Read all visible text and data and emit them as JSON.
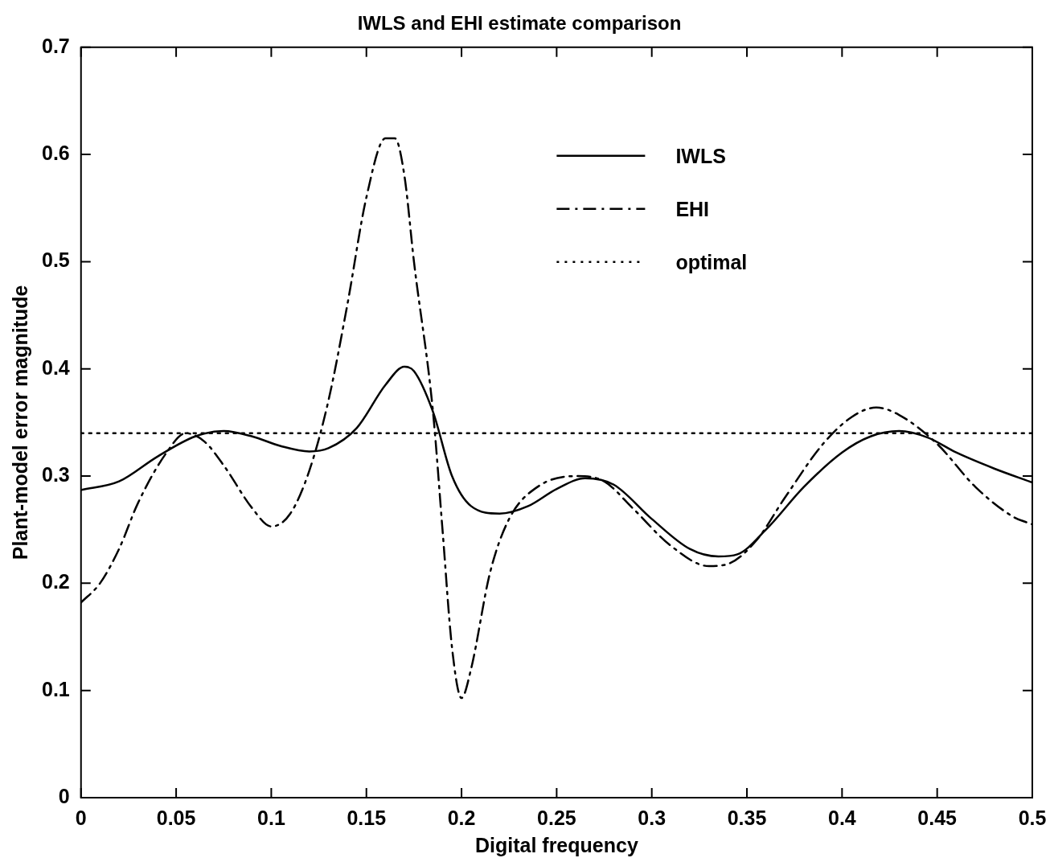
{
  "chart_data": {
    "type": "line",
    "title": "IWLS and EHI estimate comparison",
    "xlabel": "Digital frequency",
    "ylabel": "Plant-model error magnitude",
    "xlim": [
      0,
      0.5
    ],
    "xticks": [
      0,
      0.05,
      0.1,
      0.15,
      0.2,
      0.25,
      0.3,
      0.35,
      0.4,
      0.45,
      0.5
    ],
    "ylim": [
      0,
      0.7
    ],
    "yticks": [
      0,
      0.1,
      0.2,
      0.3,
      0.4,
      0.5,
      0.6,
      0.7
    ],
    "grid": false,
    "legend": "top right",
    "marker": "none",
    "series": [
      {
        "name": "IWLS",
        "color": "#000000",
        "line_style": "solid",
        "x": [
          0,
          0.02,
          0.04,
          0.06,
          0.075,
          0.09,
          0.105,
          0.12,
          0.13,
          0.145,
          0.16,
          0.17,
          0.175,
          0.185,
          0.195,
          0.205,
          0.22,
          0.235,
          0.25,
          0.265,
          0.28,
          0.3,
          0.32,
          0.335,
          0.345,
          0.36,
          0.38,
          0.4,
          0.415,
          0.43,
          0.445,
          0.46,
          0.48,
          0.5
        ],
        "values": [
          0.287,
          0.295,
          0.318,
          0.337,
          0.342,
          0.337,
          0.328,
          0.323,
          0.326,
          0.345,
          0.385,
          0.402,
          0.398,
          0.36,
          0.3,
          0.272,
          0.265,
          0.272,
          0.288,
          0.298,
          0.292,
          0.26,
          0.232,
          0.225,
          0.227,
          0.25,
          0.29,
          0.322,
          0.337,
          0.342,
          0.336,
          0.322,
          0.307,
          0.294
        ]
      },
      {
        "name": "EHI",
        "color": "#000000",
        "line_style": "dashed",
        "x": [
          0,
          0.01,
          0.02,
          0.03,
          0.045,
          0.055,
          0.065,
          0.075,
          0.09,
          0.1,
          0.11,
          0.12,
          0.13,
          0.14,
          0.15,
          0.16,
          0.165,
          0.17,
          0.175,
          0.185,
          0.19,
          0.195,
          0.2,
          0.205,
          0.215,
          0.225,
          0.24,
          0.26,
          0.275,
          0.29,
          0.31,
          0.33,
          0.34,
          0.355,
          0.37,
          0.39,
          0.405,
          0.418,
          0.43,
          0.45,
          0.47,
          0.49,
          0.5
        ],
        "values": [
          0.182,
          0.2,
          0.232,
          0.275,
          0.322,
          0.34,
          0.332,
          0.31,
          0.27,
          0.253,
          0.265,
          0.305,
          0.37,
          0.46,
          0.56,
          0.615,
          0.615,
          0.58,
          0.5,
          0.36,
          0.25,
          0.14,
          0.093,
          0.12,
          0.21,
          0.26,
          0.29,
          0.3,
          0.295,
          0.27,
          0.235,
          0.216,
          0.218,
          0.24,
          0.28,
          0.33,
          0.355,
          0.364,
          0.357,
          0.33,
          0.29,
          0.262,
          0.255
        ]
      },
      {
        "name": "optimal",
        "color": "#000000",
        "line_style": "dotted",
        "x": [
          0,
          0.5
        ],
        "values": [
          0.34,
          0.34
        ]
      }
    ]
  }
}
